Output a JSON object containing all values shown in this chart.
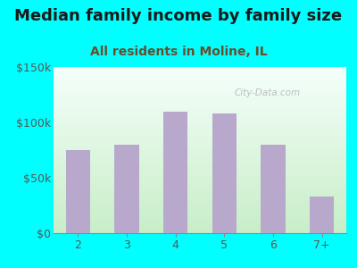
{
  "title": "Median family income by family size",
  "subtitle": "All residents in Moline, IL",
  "categories": [
    "2",
    "3",
    "4",
    "5",
    "6",
    "7+"
  ],
  "values": [
    75000,
    80000,
    110000,
    108000,
    80000,
    33000
  ],
  "bar_color": "#b8a8cc",
  "background_outer": "#00ffff",
  "title_color": "#1a1a1a",
  "subtitle_color": "#6b4c2a",
  "tick_label_color": "#555555",
  "ylim": [
    0,
    150000
  ],
  "yticks": [
    0,
    50000,
    100000,
    150000
  ],
  "ytick_labels": [
    "$0",
    "$50k",
    "$100k",
    "$150k"
  ],
  "title_fontsize": 13,
  "subtitle_fontsize": 10,
  "watermark_text": "City-Data.com",
  "watermark_color": "#aaaaaa",
  "bar_width": 0.5
}
